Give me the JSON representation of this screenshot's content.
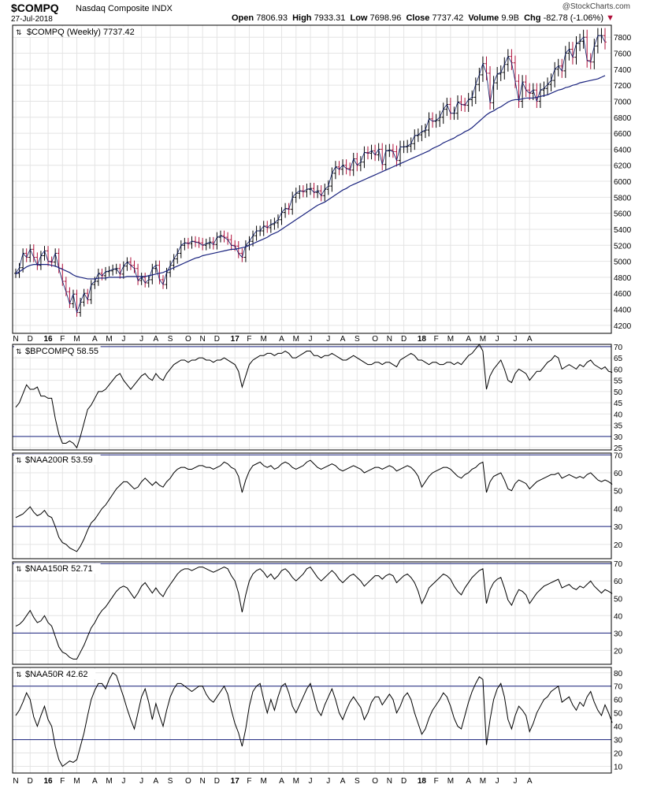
{
  "header": {
    "symbol": "$COMPQ",
    "name": "Nasdaq Composite INDX",
    "date": "27-Jul-2018",
    "credit": "@StockCharts.com",
    "open_label": "Open",
    "open": "7806.93",
    "high_label": "High",
    "high": "7933.31",
    "low_label": "Low",
    "low": "7698.96",
    "close_label": "Close",
    "close": "7737.42",
    "volume_label": "Volume",
    "volume": "9.9B",
    "chg_label": "Chg",
    "chg": "-82.78 (-1.06%)",
    "chg_arrow": "▼"
  },
  "colors": {
    "up_bar": "#000000",
    "down_bar": "#b0103a",
    "ma_line": "#1a237e",
    "indicator_line": "#000000",
    "level_line": "#1a237e",
    "grid": "#e4e4e4"
  },
  "x_axis": {
    "labels": [
      {
        "text": "N",
        "w": 0
      },
      {
        "text": "D",
        "w": 4
      },
      {
        "text": "16",
        "w": 9,
        "bold": true
      },
      {
        "text": "F",
        "w": 13
      },
      {
        "text": "M",
        "w": 17
      },
      {
        "text": "A",
        "w": 22
      },
      {
        "text": "M",
        "w": 26
      },
      {
        "text": "J",
        "w": 30
      },
      {
        "text": "J",
        "w": 35
      },
      {
        "text": "A",
        "w": 39
      },
      {
        "text": "S",
        "w": 43
      },
      {
        "text": "O",
        "w": 48
      },
      {
        "text": "N",
        "w": 52
      },
      {
        "text": "D",
        "w": 56
      },
      {
        "text": "17",
        "w": 61,
        "bold": true
      },
      {
        "text": "F",
        "w": 65
      },
      {
        "text": "M",
        "w": 69
      },
      {
        "text": "A",
        "w": 74
      },
      {
        "text": "M",
        "w": 78
      },
      {
        "text": "J",
        "w": 82
      },
      {
        "text": "J",
        "w": 87
      },
      {
        "text": "A",
        "w": 91
      },
      {
        "text": "S",
        "w": 95
      },
      {
        "text": "O",
        "w": 100
      },
      {
        "text": "N",
        "w": 104
      },
      {
        "text": "D",
        "w": 108
      },
      {
        "text": "18",
        "w": 113,
        "bold": true
      },
      {
        "text": "F",
        "w": 117
      },
      {
        "text": "M",
        "w": 121
      },
      {
        "text": "A",
        "w": 126
      },
      {
        "text": "M",
        "w": 130
      },
      {
        "text": "J",
        "w": 134
      },
      {
        "text": "J",
        "w": 139
      },
      {
        "text": "A",
        "w": 143
      }
    ]
  },
  "chart_data": [
    {
      "type": "ohlc",
      "title": "$COMPQ (Weekly) 7737.42",
      "frequency": "weekly",
      "ylim": [
        4100,
        7950
      ],
      "yticks": [
        4200,
        4400,
        4600,
        4800,
        5000,
        5200,
        5400,
        5600,
        5800,
        6000,
        6200,
        6400,
        6600,
        6800,
        7000,
        7200,
        7400,
        7600,
        7800
      ],
      "close": [
        4850,
        4920,
        5100,
        5050,
        5150,
        5050,
        4950,
        5070,
        5130,
        5000,
        4990,
        5100,
        4910,
        4750,
        4620,
        4470,
        4590,
        4360,
        4490,
        4600,
        4520,
        4710,
        4750,
        4850,
        4820,
        4870,
        4880,
        4900,
        4910,
        4840,
        4940,
        4990,
        4950,
        4910,
        4760,
        4800,
        4730,
        4770,
        4910,
        4950,
        4770,
        4710,
        4860,
        4950,
        5030,
        5100,
        5200,
        5230,
        5220,
        5250,
        5240,
        5230,
        5200,
        5220,
        5240,
        5210,
        5300,
        5320,
        5300,
        5270,
        5200,
        5190,
        5100,
        5050,
        5200,
        5250,
        5320,
        5380,
        5380,
        5440,
        5420,
        5460,
        5480,
        5520,
        5610,
        5660,
        5650,
        5800,
        5850,
        5880,
        5870,
        5900,
        5910,
        5860,
        5880,
        5820,
        5900,
        5940,
        6100,
        6180,
        6150,
        6200,
        6160,
        6140,
        6280,
        6200,
        6240,
        6360,
        6350,
        6380,
        6330,
        6400,
        6210,
        6380,
        6390,
        6370,
        6260,
        6430,
        6430,
        6440,
        6470,
        6570,
        6580,
        6620,
        6640,
        6780,
        6750,
        6760,
        6800,
        6900,
        6960,
        6850,
        6850,
        6990,
        6960,
        6950,
        7020,
        7050,
        7210,
        7330,
        7470,
        7350,
        6980,
        7230,
        7340,
        7360,
        7460,
        7560,
        7480,
        7250,
        7000,
        7240,
        7140,
        7100,
        7140,
        7000,
        7140,
        7160,
        7210,
        7260,
        7400,
        7440,
        7380,
        7600,
        7650,
        7550,
        7720,
        7750,
        7800,
        7510,
        7490,
        7690,
        7820,
        7820,
        7740
      ]
    },
    {
      "type": "line",
      "series_name": "moving average",
      "values": [
        4840,
        4870,
        4900,
        4930,
        4950,
        4960,
        4960,
        4960,
        4960,
        4960,
        4950,
        4940,
        4920,
        4900,
        4880,
        4860,
        4830,
        4810,
        4800,
        4790,
        4780,
        4780,
        4780,
        4790,
        4790,
        4790,
        4800,
        4800,
        4800,
        4800,
        4800,
        4810,
        4810,
        4810,
        4810,
        4810,
        4810,
        4820,
        4830,
        4840,
        4850,
        4860,
        4880,
        4900,
        4920,
        4940,
        4960,
        4980,
        5000,
        5020,
        5040,
        5050,
        5070,
        5080,
        5090,
        5100,
        5110,
        5120,
        5130,
        5140,
        5150,
        5150,
        5160,
        5170,
        5180,
        5200,
        5220,
        5240,
        5260,
        5280,
        5300,
        5330,
        5350,
        5370,
        5400,
        5430,
        5460,
        5490,
        5520,
        5550,
        5580,
        5610,
        5640,
        5670,
        5700,
        5720,
        5740,
        5770,
        5800,
        5830,
        5860,
        5890,
        5910,
        5940,
        5960,
        5980,
        6000,
        6020,
        6040,
        6060,
        6080,
        6100,
        6120,
        6140,
        6160,
        6180,
        6200,
        6220,
        6240,
        6260,
        6280,
        6300,
        6320,
        6340,
        6360,
        6380,
        6410,
        6430,
        6450,
        6480,
        6500,
        6520,
        6540,
        6570,
        6590,
        6620,
        6640,
        6670,
        6710,
        6750,
        6790,
        6830,
        6860,
        6880,
        6910,
        6930,
        6960,
        6990,
        7010,
        7020,
        7020,
        7030,
        7040,
        7040,
        7040,
        7050,
        7060,
        7070,
        7080,
        7100,
        7120,
        7140,
        7150,
        7170,
        7180,
        7200,
        7210,
        7230,
        7240,
        7250,
        7260,
        7270,
        7280,
        7300,
        7320
      ]
    },
    {
      "type": "line",
      "title": "$BPCOMPQ 58.55",
      "ylim": [
        24,
        71
      ],
      "yticks": [
        25,
        30,
        35,
        40,
        45,
        50,
        55,
        60,
        65,
        70
      ],
      "levels": [
        30,
        70
      ],
      "values": [
        43,
        45,
        49,
        53,
        51,
        51,
        52,
        48,
        48,
        47,
        47,
        38,
        31,
        27,
        27,
        28,
        27,
        25,
        30,
        36,
        42,
        44,
        47,
        50,
        50,
        51,
        53,
        55,
        57,
        58,
        55,
        53,
        51,
        53,
        55,
        57,
        58,
        56,
        55,
        58,
        56,
        55,
        58,
        60,
        62,
        63,
        64,
        64,
        63,
        64,
        64,
        65,
        65,
        64,
        64,
        63,
        64,
        64,
        65,
        64,
        63,
        62,
        59,
        52,
        57,
        62,
        64,
        65,
        66,
        66,
        67,
        67,
        66,
        67,
        67,
        68,
        67,
        65,
        65,
        66,
        67,
        68,
        68,
        66,
        66,
        65,
        66,
        66,
        67,
        66,
        65,
        64,
        64,
        65,
        66,
        65,
        64,
        63,
        62,
        62,
        63,
        63,
        62,
        63,
        63,
        62,
        61,
        64,
        65,
        66,
        67,
        66,
        64,
        64,
        63,
        62,
        63,
        63,
        62,
        62,
        63,
        63,
        62,
        63,
        62,
        64,
        66,
        67,
        69,
        71,
        68,
        51,
        57,
        60,
        62,
        64,
        60,
        55,
        54,
        58,
        60,
        59,
        58,
        55,
        57,
        59,
        59,
        61,
        63,
        64,
        66,
        65,
        60,
        61,
        62,
        61,
        60,
        62,
        61,
        63,
        64,
        62,
        61,
        60,
        61,
        59,
        58.55
      ]
    },
    {
      "type": "line",
      "title": "$NAA200R 53.59",
      "ylim": [
        12,
        71
      ],
      "yticks": [
        20,
        30,
        40,
        50,
        60,
        70
      ],
      "levels": [
        30,
        70
      ],
      "values": [
        35,
        36,
        37,
        39,
        41,
        38,
        36,
        37,
        39,
        36,
        35,
        30,
        24,
        21,
        20,
        18,
        17,
        16,
        19,
        23,
        28,
        32,
        34,
        37,
        40,
        42,
        45,
        48,
        51,
        53,
        55,
        55,
        53,
        51,
        52,
        55,
        57,
        55,
        53,
        55,
        53,
        52,
        55,
        57,
        60,
        62,
        63,
        63,
        62,
        62,
        63,
        64,
        64,
        63,
        63,
        62,
        63,
        64,
        66,
        65,
        63,
        62,
        58,
        49,
        56,
        61,
        64,
        65,
        66,
        64,
        63,
        64,
        62,
        63,
        65,
        66,
        65,
        63,
        62,
        63,
        64,
        66,
        67,
        65,
        63,
        62,
        63,
        64,
        65,
        64,
        62,
        61,
        62,
        63,
        64,
        63,
        62,
        60,
        61,
        62,
        63,
        63,
        62,
        63,
        64,
        63,
        61,
        62,
        63,
        64,
        63,
        61,
        58,
        52,
        55,
        58,
        60,
        61,
        62,
        63,
        63,
        62,
        60,
        58,
        57,
        59,
        60,
        62,
        63,
        65,
        66,
        49,
        55,
        58,
        59,
        60,
        56,
        51,
        50,
        54,
        56,
        55,
        54,
        51,
        53,
        55,
        56,
        57,
        58,
        59,
        59,
        60,
        57,
        58,
        59,
        58,
        57,
        58,
        57,
        59,
        60,
        58,
        56,
        55,
        56,
        55,
        53.59
      ]
    },
    {
      "type": "line",
      "title": "$NAA150R 52.71",
      "ylim": [
        12,
        71
      ],
      "yticks": [
        20,
        30,
        40,
        50,
        60,
        70
      ],
      "levels": [
        30,
        70
      ],
      "values": [
        34,
        35,
        37,
        40,
        43,
        39,
        36,
        37,
        40,
        36,
        34,
        28,
        22,
        19,
        18,
        16,
        15,
        15,
        19,
        23,
        28,
        33,
        36,
        40,
        43,
        45,
        48,
        51,
        54,
        56,
        57,
        56,
        53,
        50,
        53,
        57,
        59,
        56,
        53,
        56,
        53,
        51,
        55,
        58,
        61,
        64,
        66,
        67,
        67,
        66,
        67,
        68,
        68,
        67,
        66,
        65,
        66,
        67,
        68,
        67,
        63,
        60,
        53,
        42,
        52,
        60,
        64,
        66,
        67,
        65,
        62,
        64,
        61,
        63,
        66,
        67,
        65,
        62,
        60,
        62,
        64,
        67,
        68,
        65,
        62,
        60,
        62,
        64,
        66,
        64,
        61,
        59,
        61,
        63,
        64,
        62,
        60,
        57,
        59,
        61,
        63,
        63,
        61,
        63,
        64,
        63,
        59,
        61,
        63,
        64,
        62,
        59,
        54,
        47,
        51,
        56,
        58,
        60,
        62,
        64,
        63,
        61,
        57,
        54,
        52,
        56,
        59,
        62,
        64,
        66,
        67,
        47,
        55,
        59,
        61,
        62,
        56,
        49,
        46,
        51,
        55,
        54,
        52,
        47,
        50,
        53,
        55,
        57,
        58,
        59,
        60,
        61,
        56,
        57,
        58,
        56,
        55,
        57,
        56,
        58,
        60,
        57,
        55,
        53,
        55,
        54,
        52.71
      ]
    },
    {
      "type": "line",
      "title": "$NAA50R 42.62",
      "ylim": [
        5,
        84
      ],
      "yticks": [
        10,
        20,
        30,
        40,
        50,
        60,
        70,
        80
      ],
      "levels": [
        30,
        70
      ],
      "values": [
        48,
        52,
        58,
        65,
        60,
        47,
        40,
        48,
        55,
        45,
        40,
        25,
        15,
        10,
        12,
        14,
        13,
        15,
        25,
        35,
        48,
        60,
        67,
        72,
        72,
        68,
        75,
        80,
        78,
        70,
        62,
        53,
        45,
        38,
        50,
        62,
        68,
        58,
        45,
        57,
        48,
        40,
        52,
        62,
        68,
        72,
        72,
        70,
        68,
        66,
        68,
        70,
        70,
        64,
        60,
        58,
        62,
        66,
        70,
        64,
        52,
        42,
        35,
        25,
        38,
        55,
        66,
        70,
        72,
        60,
        50,
        60,
        52,
        62,
        70,
        72,
        65,
        55,
        50,
        56,
        62,
        68,
        72,
        62,
        52,
        48,
        56,
        62,
        68,
        60,
        50,
        45,
        52,
        58,
        62,
        58,
        54,
        45,
        50,
        58,
        62,
        62,
        56,
        60,
        64,
        60,
        50,
        55,
        62,
        65,
        60,
        50,
        42,
        34,
        38,
        46,
        52,
        56,
        60,
        65,
        62,
        55,
        46,
        40,
        38,
        48,
        58,
        66,
        72,
        77,
        75,
        26,
        45,
        60,
        68,
        72,
        62,
        45,
        38,
        48,
        55,
        52,
        48,
        36,
        42,
        50,
        55,
        60,
        62,
        66,
        68,
        70,
        58,
        60,
        62,
        56,
        52,
        58,
        55,
        62,
        66,
        58,
        52,
        48,
        56,
        50,
        42.62
      ]
    }
  ]
}
